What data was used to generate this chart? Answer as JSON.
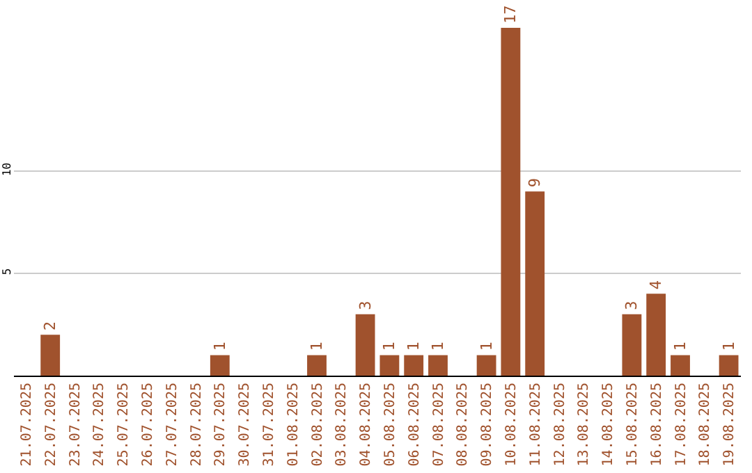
{
  "chart_data": {
    "type": "bar",
    "categories": [
      "21.07.2025",
      "22.07.2025",
      "23.07.2025",
      "24.07.2025",
      "25.07.2025",
      "26.07.2025",
      "27.07.2025",
      "28.07.2025",
      "29.07.2025",
      "30.07.2025",
      "31.07.2025",
      "01.08.2025",
      "02.08.2025",
      "03.08.2025",
      "04.08.2025",
      "05.08.2025",
      "06.08.2025",
      "07.08.2025",
      "08.08.2025",
      "09.08.2025",
      "10.08.2025",
      "11.08.2025",
      "12.08.2025",
      "13.08.2025",
      "14.08.2025",
      "15.08.2025",
      "16.08.2025",
      "17.08.2025",
      "18.08.2025",
      "19.08.2025"
    ],
    "values": [
      0,
      2,
      0,
      0,
      0,
      0,
      0,
      0,
      1,
      0,
      0,
      0,
      1,
      0,
      3,
      1,
      1,
      1,
      0,
      1,
      17,
      9,
      0,
      0,
      0,
      3,
      4,
      1,
      0,
      1
    ],
    "value_labels": [
      null,
      "2",
      null,
      null,
      null,
      null,
      null,
      null,
      "1",
      null,
      null,
      null,
      "1",
      null,
      "3",
      "1",
      "1",
      "1",
      null,
      "1",
      "17",
      "9",
      null,
      null,
      null,
      "3",
      "4",
      "1",
      null,
      "1"
    ],
    "color": "#a0522d",
    "ylim": [
      0,
      17
    ],
    "yticks": [
      5,
      10
    ],
    "grid": "y",
    "legend": false
  }
}
